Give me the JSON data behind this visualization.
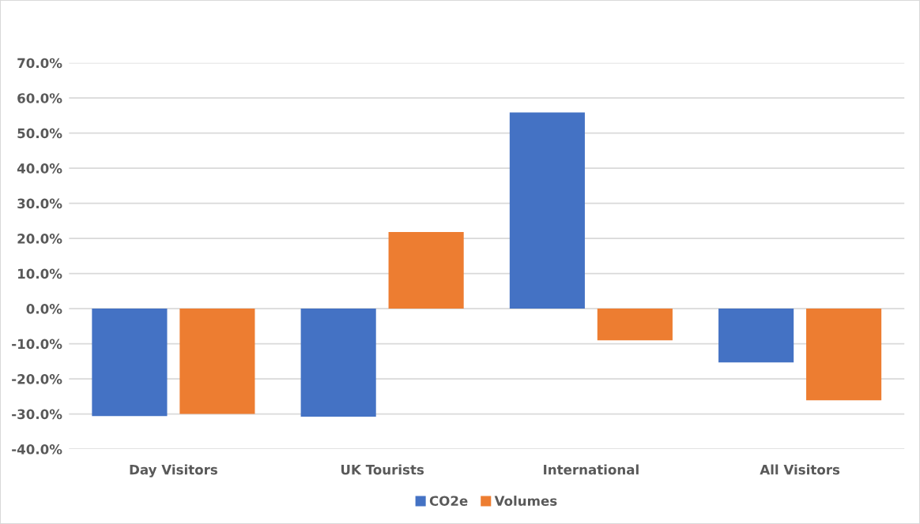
{
  "chart_data": {
    "type": "bar",
    "categories": [
      "Day Visitors",
      "UK Tourists",
      "International",
      "All Visitors"
    ],
    "series": [
      {
        "name": "CO2e",
        "color": "#4472c4",
        "values": [
          -30.6,
          -30.8,
          55.9,
          -15.3
        ]
      },
      {
        "name": "Volumes",
        "color": "#ed7d31",
        "values": [
          -30.0,
          21.8,
          -9.0,
          -26.1
        ]
      }
    ],
    "ylim": [
      -40,
      70
    ],
    "yticks": [
      {
        "value": -40,
        "label": "-40.0%"
      },
      {
        "value": -30,
        "label": "-30.0%"
      },
      {
        "value": -20,
        "label": "-20.0%"
      },
      {
        "value": -10,
        "label": "-10.0%"
      },
      {
        "value": 0,
        "label": "0.0%"
      },
      {
        "value": 10,
        "label": "10.0%"
      },
      {
        "value": 20,
        "label": "20.0%"
      },
      {
        "value": 30,
        "label": "30.0%"
      },
      {
        "value": 40,
        "label": "40.0%"
      },
      {
        "value": 50,
        "label": "50.0%"
      },
      {
        "value": 60,
        "label": "60.0%"
      },
      {
        "value": 70,
        "label": "70.0%"
      }
    ],
    "grid": "y",
    "legend": "bottom"
  }
}
